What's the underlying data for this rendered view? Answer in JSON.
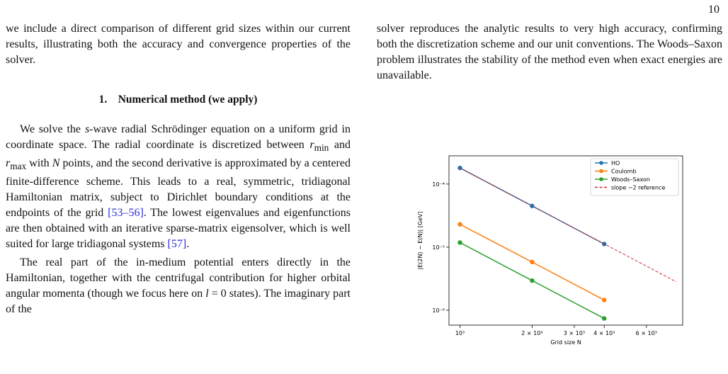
{
  "page_number": "10",
  "left_column": {
    "intro": "we include a direct comparison of different grid sizes within our current results, illustrating both the accuracy and convergence properties of the solver.",
    "section_number": "1.",
    "section_title": "Numerical method (we apply)",
    "p1_a": "We solve the ",
    "p1_s": "s",
    "p1_b": "-wave radial Schrödinger equation on a uniform grid in coordinate space. The radial coordinate is discretized between ",
    "p1_rmin": "r",
    "p1_rmin_sub": "min",
    "p1_and": " and ",
    "p1_rmax": "r",
    "p1_rmax_sub": "max",
    "p1_with": " with ",
    "p1_N": "N",
    "p1_c": " points, and the second derivative is approximated by a centered finite-difference scheme. This leads to a real, symmetric, tridiagonal Hamiltonian matrix, subject to Dirichlet boundary conditions at the endpoints of the grid ",
    "p1_cite1": "[53–56]",
    "p1_d": ". The lowest eigenvalues and eigenfunctions are then obtained with an iterative sparse-matrix eigensolver, which is well suited for large tridiagonal systems ",
    "p1_cite2": "[57]",
    "p1_e": ".",
    "p2_a": "The real part of the in-medium potential enters directly in the Hamiltonian, together with the centrifugal contribution for higher orbital angular momenta (though we focus here on ",
    "p2_l": "l",
    "p2_b": " = 0 states). The imaginary part of the"
  },
  "right_column": {
    "text": "solver reproduces the analytic results to very high accuracy, confirming both the discretization scheme and our unit conventions. The Woods–Saxon problem illustrates the stability of the method even when exact energies are unavailable."
  },
  "chart_data": {
    "type": "line",
    "xscale": "log",
    "yscale": "log",
    "xlabel": "Grid size N",
    "ylabel": "|E(2N) − E(N)| [GeV]",
    "xlim": [
      900,
      8500
    ],
    "ylim": [
      5.8e-07,
      0.00028
    ],
    "x_ticks": [
      {
        "value": 1000,
        "label": "10³"
      },
      {
        "value": 2000,
        "label": "2 × 10³"
      },
      {
        "value": 3000,
        "label": "3 × 10³"
      },
      {
        "value": 4000,
        "label": "4 × 10³"
      },
      {
        "value": 6000,
        "label": "6 × 10³"
      }
    ],
    "y_ticks": [
      {
        "value": 1e-06,
        "label": "10⁻⁶"
      },
      {
        "value": 1e-05,
        "label": "10⁻⁵"
      },
      {
        "value": 0.0001,
        "label": "10⁻⁴"
      }
    ],
    "x": [
      1000,
      2000,
      4000
    ],
    "series": [
      {
        "name": "HO",
        "color": "#1f77b4",
        "values": [
          0.00018,
          4.5e-05,
          1.12e-05
        ]
      },
      {
        "name": "Coulomb",
        "color": "#ff7f0e",
        "values": [
          2.3e-05,
          5.8e-06,
          1.45e-06
        ]
      },
      {
        "name": "Woods–Saxon",
        "color": "#2ca02c",
        "values": [
          1.18e-05,
          2.95e-06,
          7.4e-07
        ]
      }
    ],
    "reference": {
      "name": "slope −2 reference",
      "color": "#d62728",
      "x": [
        1000,
        8000
      ],
      "values": [
        0.00018,
        2.81e-06
      ]
    },
    "grid": false,
    "legend": "top-right"
  }
}
